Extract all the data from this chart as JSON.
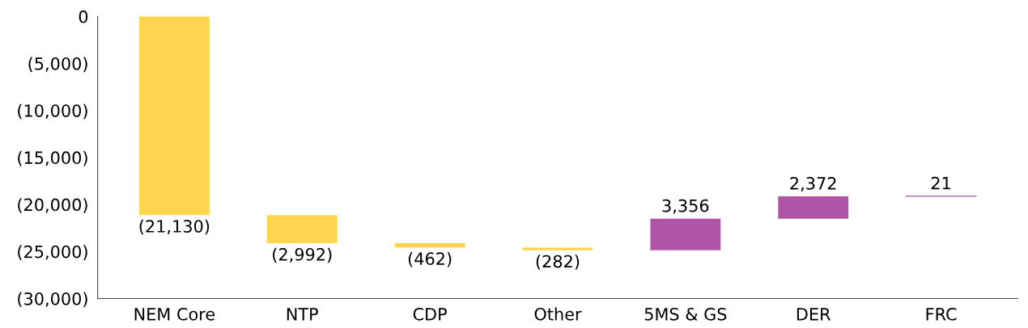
{
  "chart_data": {
    "type": "bar",
    "categories": [
      "NEM Core",
      "NTP",
      "CDP",
      "Other",
      "5MS & GS",
      "DER",
      "FRC"
    ],
    "values": [
      -21130,
      -2992,
      -462,
      -282,
      3356,
      2372,
      21
    ],
    "base": [
      0,
      -21130,
      -24122,
      -24584,
      -24866,
      -21510,
      -19138
    ],
    "colors": [
      "#ffd54f",
      "#ffd54f",
      "#ffd54f",
      "#ffd54f",
      "#b054a8",
      "#b054a8",
      "#b054a8"
    ],
    "value_labels": [
      "(21,130)",
      "(2,992)",
      "(462)",
      "(282)",
      "3,356",
      "2,372",
      "21"
    ],
    "ylim": [
      -30000,
      0
    ],
    "yticks": [
      {
        "value": 0,
        "label": "0"
      },
      {
        "value": -5000,
        "label": "(5,000)"
      },
      {
        "value": -10000,
        "label": "(10,000)"
      },
      {
        "value": -15000,
        "label": "(15,000)"
      },
      {
        "value": -20000,
        "label": "(20,000)"
      },
      {
        "value": -25000,
        "label": "(25,000)"
      },
      {
        "value": -30000,
        "label": "(30,000)"
      }
    ],
    "grid": false
  }
}
